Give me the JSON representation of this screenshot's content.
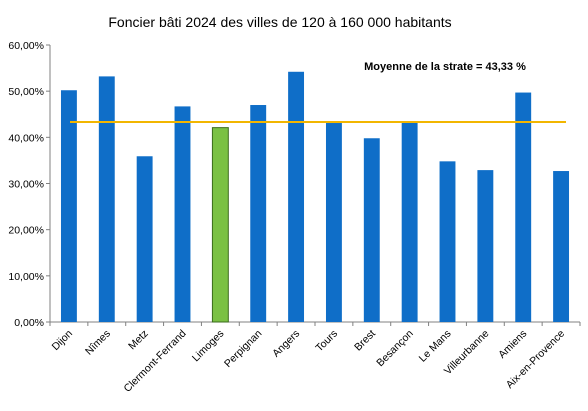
{
  "chart_data": {
    "type": "bar",
    "title": "Foncier bâti 2024 des villes de 120 à 160 000 habitants",
    "categories": [
      "Dijon",
      "Nîmes",
      "Metz",
      "Clermont-Ferrand",
      "Limoges",
      "Perpignan",
      "Angers",
      "Tours",
      "Brest",
      "Besançon",
      "Le Mans",
      "Villeurbanne",
      "Amiens",
      "Aix-en-Provence"
    ],
    "values": [
      50.2,
      53.2,
      35.9,
      46.7,
      42.1,
      47.0,
      54.2,
      43.1,
      39.8,
      43.5,
      34.8,
      32.9,
      49.7,
      32.7
    ],
    "highlight": {
      "category": "Limoges",
      "color": "#7ac143"
    },
    "bar_color": "#0f6ec8",
    "y_ticks": [
      "0,00%",
      "10,00%",
      "20,00%",
      "30,00%",
      "40,00%",
      "50,00%",
      "60,00%"
    ],
    "ylim": [
      0,
      60
    ],
    "average": {
      "value": 43.33,
      "label": "Moyenne de la strate = 43,33 %",
      "color": "#f2b600"
    },
    "grid": false,
    "legend": "none"
  }
}
